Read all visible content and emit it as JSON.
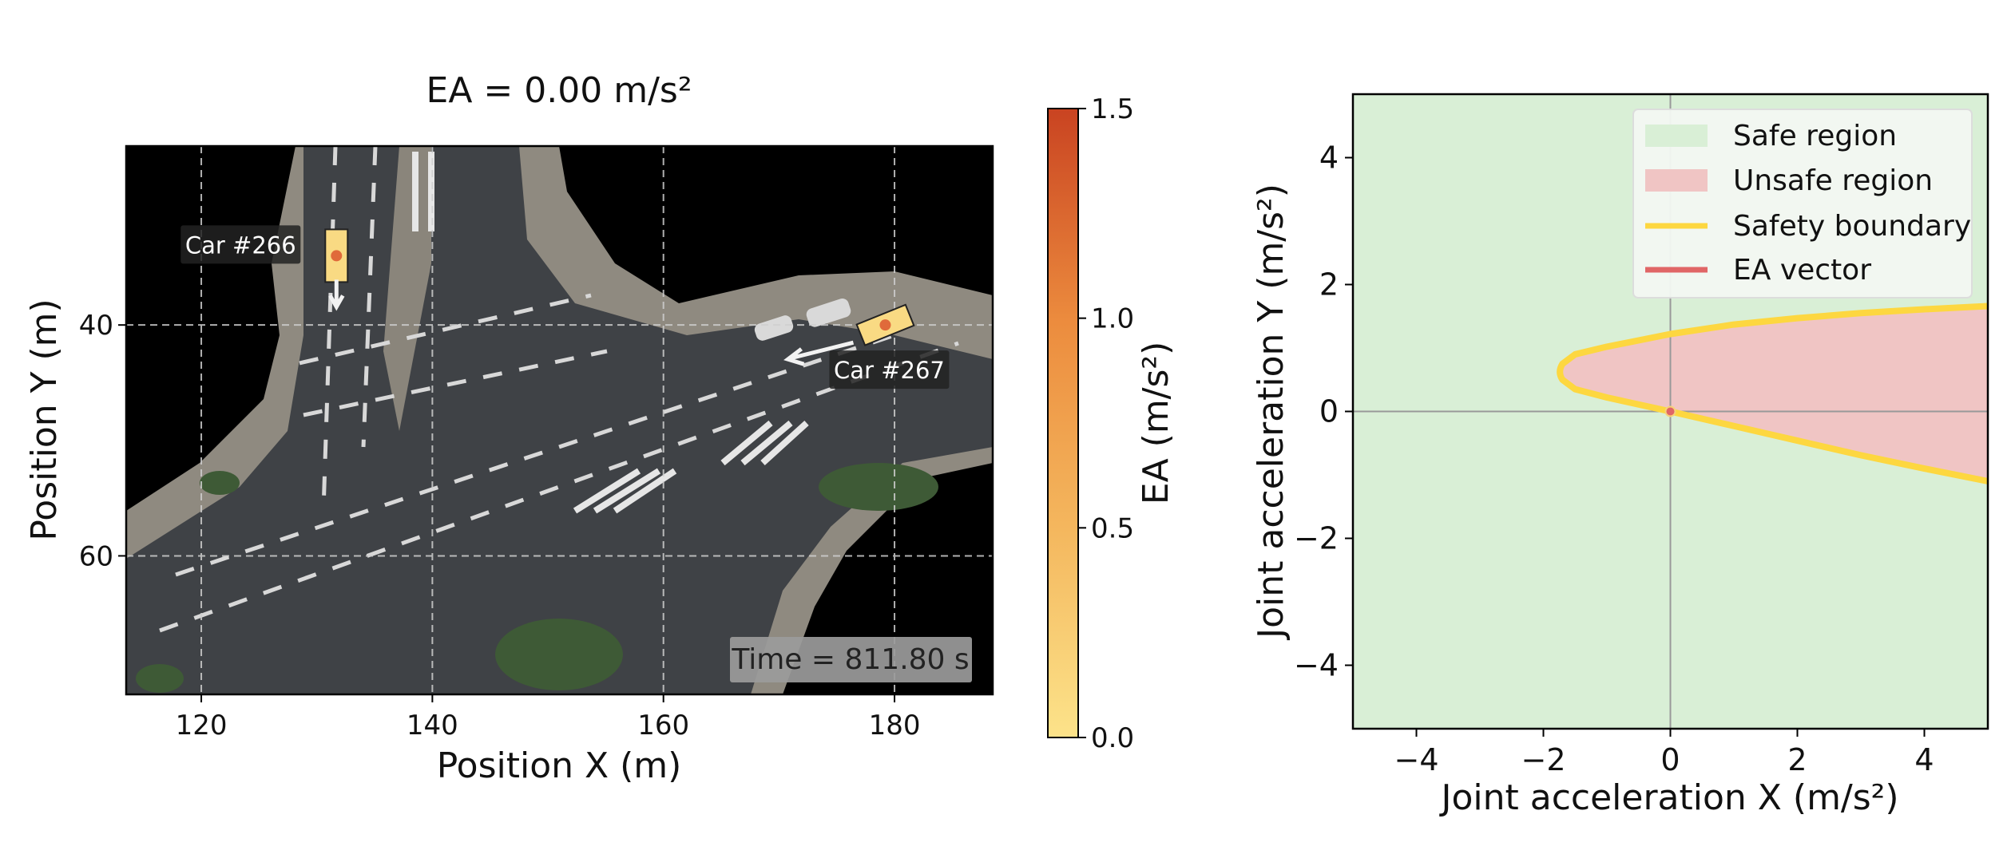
{
  "chart_data": [
    {
      "type": "scatter",
      "title": "EA = 0.00 m/s²",
      "xlabel": "Position X (m)",
      "ylabel": "Position Y (m)",
      "xlim": [
        113.5,
        188.5
      ],
      "ylim": [
        72,
        24.5
      ],
      "y_inverted": true,
      "xticks": [
        120,
        140,
        160,
        180
      ],
      "yticks": [
        40,
        60
      ],
      "grid": true,
      "background": "aerial-photo-of-road-intersection",
      "vehicles": [
        {
          "label": "Car #266",
          "x": 131.7,
          "y": 34.0,
          "heading": "south",
          "color": "#F9DA83"
        },
        {
          "label": "Car #267",
          "x": 179.2,
          "y": 40.0,
          "heading": "west",
          "color": "#F9DA83"
        }
      ],
      "annotation": "Time = 811.80 s",
      "colorbar": {
        "label": "EA (m/s²)",
        "range": [
          0.0,
          1.5
        ],
        "ticks": [
          "0.0",
          "0.5",
          "1.0",
          "1.5"
        ],
        "colors": [
          "#FCE38A",
          "#F4B75E",
          "#EC8C3E",
          "#C94321"
        ]
      }
    },
    {
      "type": "area",
      "xlabel": "Joint acceleration X (m/s²)",
      "ylabel": "Joint acceleration Y (m/s²)",
      "xlim": [
        -5,
        5
      ],
      "ylim": [
        -5,
        5
      ],
      "xticks": [
        "−4",
        "−2",
        "0",
        "2",
        "4"
      ],
      "yticks": [
        "−4",
        "−2",
        "0",
        "2",
        "4"
      ],
      "legend": "top-right",
      "series": [
        {
          "name": "Safe region",
          "color": "#D9EFD6"
        },
        {
          "name": "Unsafe region",
          "color": "#F0C5C4"
        },
        {
          "name": "Safety boundary",
          "color": "#FDD740",
          "upper": [
            [
              -1.7,
              0.75
            ],
            [
              -1.5,
              0.9
            ],
            [
              -1.0,
              1.02
            ],
            [
              0.0,
              1.22
            ],
            [
              1.0,
              1.37
            ],
            [
              2.0,
              1.47
            ],
            [
              3.0,
              1.55
            ],
            [
              4.0,
              1.61
            ],
            [
              5.0,
              1.66
            ]
          ],
          "lower": [
            [
              -1.7,
              0.5
            ],
            [
              -1.5,
              0.35
            ],
            [
              -1.0,
              0.22
            ],
            [
              0.0,
              0.0
            ],
            [
              1.0,
              -0.23
            ],
            [
              2.0,
              -0.46
            ],
            [
              3.0,
              -0.69
            ],
            [
              4.0,
              -0.9
            ],
            [
              5.0,
              -1.1
            ]
          ]
        },
        {
          "name": "EA vector",
          "color": "#E06666",
          "point": [
            0,
            0
          ]
        }
      ]
    }
  ]
}
